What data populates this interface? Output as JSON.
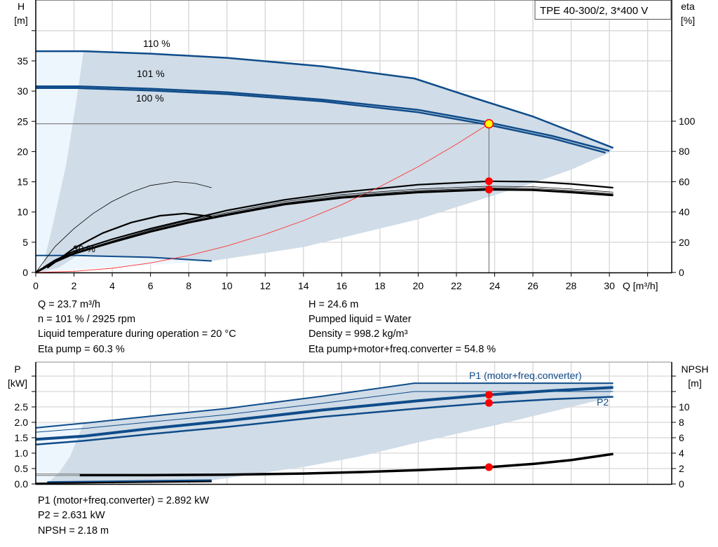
{
  "legend_box": "TPE 40-300/2, 3*400 V",
  "colors": {
    "curve_blue": "#0f4c8a",
    "fill_region": "#d0dce7",
    "fill_light": "#eef6fd",
    "system_curve": "#ff3333",
    "duty_point": "#ffff00",
    "marker": "#ff0000",
    "grid": "#d6d6d6"
  },
  "chart_data": [
    {
      "type": "line",
      "title": "",
      "xlabel": "Q [m³/h]",
      "ylabel_left": [
        "H",
        "[m]"
      ],
      "ylabel_right": [
        "eta",
        "[%]"
      ],
      "xlim": [
        0,
        33.3
      ],
      "ylim_left": [
        0,
        45
      ],
      "ylim_right": [
        0,
        208
      ],
      "grid": true,
      "x_ticks": [
        "0",
        "2",
        "4",
        "6",
        "8",
        "10",
        "12",
        "14",
        "16",
        "18",
        "20",
        "22",
        "24",
        "26",
        "28",
        "30"
      ],
      "y_left_ticks": [
        "0",
        "5",
        "10",
        "15",
        "20",
        "25",
        "30",
        "35"
      ],
      "y_right_ticks": [
        "0",
        "20",
        "40",
        "60",
        "80",
        "100"
      ],
      "curve_labels": {
        "speed_110": "110 %",
        "speed_101": "101 %",
        "speed_100": "100 %",
        "speed_30": "30 %"
      },
      "series": [
        {
          "id": "h_110",
          "axis": "H",
          "points": [
            [
              0,
              36.6
            ],
            [
              2.5,
              36.6
            ],
            [
              6,
              36.2
            ],
            [
              10,
              35.5
            ],
            [
              15,
              34.1
            ],
            [
              19.8,
              32.1
            ],
            [
              23,
              28.8
            ],
            [
              26,
              25.8
            ],
            [
              30.2,
              20.6
            ]
          ]
        },
        {
          "id": "h_101",
          "axis": "H",
          "points": [
            [
              0,
              30.8
            ],
            [
              2.2,
              30.8
            ],
            [
              6,
              30.4
            ],
            [
              10,
              29.8
            ],
            [
              15,
              28.6
            ],
            [
              20,
              26.9
            ],
            [
              23.7,
              24.8
            ],
            [
              27,
              22.6
            ],
            [
              30,
              20.1
            ]
          ]
        },
        {
          "id": "h_100",
          "axis": "H",
          "points": [
            [
              0,
              30.5
            ],
            [
              2.2,
              30.5
            ],
            [
              6,
              30.1
            ],
            [
              10,
              29.5
            ],
            [
              15,
              28.3
            ],
            [
              20,
              26.5
            ],
            [
              23.7,
              24.4
            ],
            [
              27,
              22.2
            ],
            [
              29.8,
              19.8
            ]
          ]
        },
        {
          "id": "h_30",
          "axis": "H",
          "points": [
            [
              0,
              2.8
            ],
            [
              2.2,
              2.8
            ],
            [
              6,
              2.5
            ],
            [
              9.2,
              1.9
            ]
          ]
        },
        {
          "id": "eta_pump",
          "axis": "eta",
          "points": [
            [
              0,
              0
            ],
            [
              1,
              8
            ],
            [
              2,
              14
            ],
            [
              4,
              22
            ],
            [
              6,
              29
            ],
            [
              8,
              35
            ],
            [
              10,
              41
            ],
            [
              13,
              48
            ],
            [
              16,
              53
            ],
            [
              20,
              58
            ],
            [
              23.7,
              60.3
            ],
            [
              26,
              60
            ],
            [
              28,
              58.5
            ],
            [
              30.2,
              56
            ]
          ]
        },
        {
          "id": "eta_total",
          "axis": "eta",
          "points": [
            [
              0,
              0
            ],
            [
              1,
              7
            ],
            [
              2,
              12.5
            ],
            [
              4,
              20
            ],
            [
              6,
              27
            ],
            [
              8,
              33
            ],
            [
              10,
              38
            ],
            [
              13,
              45
            ],
            [
              16,
              49.5
            ],
            [
              20,
              53
            ],
            [
              23.7,
              54.8
            ],
            [
              26,
              54.5
            ],
            [
              28,
              53
            ],
            [
              30.2,
              51
            ]
          ]
        },
        {
          "id": "eta_pump_30",
          "axis": "eta",
          "points": [
            [
              0,
              0
            ],
            [
              1,
              17
            ],
            [
              2,
              29
            ],
            [
              3,
              39
            ],
            [
              4,
              47
            ],
            [
              5,
              53
            ],
            [
              6,
              57.5
            ],
            [
              7.3,
              60
            ],
            [
              8.3,
              59
            ],
            [
              9.2,
              56
            ]
          ]
        },
        {
          "id": "eta_total_30",
          "axis": "eta",
          "points": [
            [
              0.6,
              3
            ],
            [
              2,
              16
            ],
            [
              3.5,
              26
            ],
            [
              5,
              33
            ],
            [
              6.5,
              37.5
            ],
            [
              7.8,
              39
            ],
            [
              9.2,
              37
            ]
          ]
        },
        {
          "id": "system_curve",
          "axis": "H",
          "points": [
            [
              0,
              0
            ],
            [
              2,
              0.18
            ],
            [
              4,
              0.7
            ],
            [
              6,
              1.58
            ],
            [
              8,
              2.8
            ],
            [
              10,
              4.38
            ],
            [
              12,
              6.31
            ],
            [
              14,
              8.58
            ],
            [
              16,
              11.2
            ],
            [
              18,
              14.2
            ],
            [
              20,
              17.5
            ],
            [
              22,
              21.2
            ],
            [
              23.7,
              24.6
            ]
          ]
        }
      ],
      "region_upper": [
        [
          2.5,
          36.6
        ],
        [
          6,
          36.2
        ],
        [
          10,
          35.5
        ],
        [
          15,
          34.1
        ],
        [
          19.8,
          32.1
        ],
        [
          23,
          28.8
        ],
        [
          26,
          25.8
        ],
        [
          30.2,
          20.6
        ],
        [
          30,
          19.8
        ]
      ],
      "region_lower": [
        [
          30,
          19.8
        ],
        [
          28,
          17
        ],
        [
          26,
          14.8
        ],
        [
          24,
          12.8
        ],
        [
          22,
          10.8
        ],
        [
          20,
          8.8
        ],
        [
          17,
          6.5
        ],
        [
          14,
          4.2
        ],
        [
          9.2,
          1.9
        ]
      ],
      "region_left": [
        [
          9.2,
          1.9
        ],
        [
          2.2,
          2.8
        ],
        [
          1.2,
          0.8
        ],
        [
          0.3,
          0.1
        ],
        [
          0.9,
          8
        ],
        [
          1.6,
          18
        ],
        [
          2.1,
          28
        ],
        [
          2.5,
          36.6
        ]
      ],
      "duty_point": {
        "Q": 23.7,
        "H": 24.6,
        "eta_pump": 60.3,
        "eta_total": 54.8
      }
    },
    {
      "type": "line",
      "title": "",
      "ylabel_left": [
        "P",
        "[kW]"
      ],
      "ylabel_right": [
        "NPSH",
        "[m]"
      ],
      "xlim": [
        0,
        33.3
      ],
      "ylim_left": [
        0,
        3.95
      ],
      "ylim_right": [
        0,
        15.8
      ],
      "grid": true,
      "y_left_ticks": [
        "0.0",
        "0.5",
        "1.0",
        "1.5",
        "2.0",
        "2.5"
      ],
      "y_right_ticks": [
        "0",
        "2",
        "4",
        "6",
        "8",
        "10"
      ],
      "curve_labels": {
        "p1": "P1 (motor+freq.converter)",
        "p2": "P2"
      },
      "series": [
        {
          "id": "p1_max",
          "axis": "P",
          "points": [
            [
              0,
              1.82
            ],
            [
              2.5,
              1.97
            ],
            [
              6,
              2.2
            ],
            [
              10,
              2.45
            ],
            [
              15,
              2.85
            ],
            [
              19.8,
              3.27
            ],
            [
              30.2,
              3.27
            ]
          ]
        },
        {
          "id": "p1_thin",
          "axis": "P",
          "points": [
            [
              0,
              1.68
            ],
            [
              2.5,
              1.8
            ],
            [
              10,
              2.25
            ],
            [
              15,
              2.62
            ],
            [
              19.8,
              3.0
            ],
            [
              30.2,
              3.0
            ]
          ]
        },
        {
          "id": "p1",
          "axis": "P",
          "points": [
            [
              0,
              1.45
            ],
            [
              2.5,
              1.55
            ],
            [
              6,
              1.8
            ],
            [
              10,
              2.05
            ],
            [
              15,
              2.4
            ],
            [
              20,
              2.7
            ],
            [
              23.7,
              2.892
            ],
            [
              27,
              3.03
            ],
            [
              30.2,
              3.13
            ]
          ]
        },
        {
          "id": "p2",
          "axis": "P",
          "points": [
            [
              0,
              1.28
            ],
            [
              2.5,
              1.4
            ],
            [
              6,
              1.62
            ],
            [
              10,
              1.85
            ],
            [
              15,
              2.18
            ],
            [
              20,
              2.45
            ],
            [
              23.7,
              2.631
            ],
            [
              27,
              2.75
            ],
            [
              30.2,
              2.83
            ]
          ]
        },
        {
          "id": "npsh",
          "axis": "NPSH",
          "points": [
            [
              2.3,
              1.15
            ],
            [
              6,
              1.15
            ],
            [
              10,
              1.2
            ],
            [
              14,
              1.35
            ],
            [
              17,
              1.55
            ],
            [
              20,
              1.8
            ],
            [
              23.7,
              2.18
            ],
            [
              26,
              2.6
            ],
            [
              28,
              3.1
            ],
            [
              30.2,
              3.9
            ]
          ]
        },
        {
          "id": "npsh_left_a",
          "axis": "NPSH",
          "points": [
            [
              0,
              1.3
            ],
            [
              2.3,
              1.3
            ]
          ]
        },
        {
          "id": "npsh_left_b",
          "axis": "NPSH",
          "points": [
            [
              0,
              1.1
            ],
            [
              2.3,
              1.1
            ]
          ]
        },
        {
          "id": "p_30_blue",
          "axis": "P",
          "points": [
            [
              0.6,
              0.06
            ],
            [
              9.2,
              0.12
            ]
          ]
        },
        {
          "id": "p_30_black",
          "axis": "P",
          "points": [
            [
              0,
              0.02
            ],
            [
              9.2,
              0.08
            ]
          ]
        }
      ],
      "region_upper": [
        [
          2.5,
          1.97
        ],
        [
          6,
          2.2
        ],
        [
          10,
          2.45
        ],
        [
          15,
          2.85
        ],
        [
          19.8,
          3.27
        ],
        [
          30.2,
          3.27
        ],
        [
          30,
          2.8
        ]
      ],
      "region_lower": [
        [
          30,
          2.8
        ],
        [
          28,
          2.5
        ],
        [
          26,
          2.2
        ],
        [
          24,
          1.9
        ],
        [
          20,
          1.35
        ],
        [
          17,
          0.9
        ],
        [
          14,
          0.55
        ],
        [
          9.2,
          0.12
        ]
      ],
      "region_left": [
        [
          9.2,
          0.12
        ],
        [
          0.6,
          0.03
        ],
        [
          1.2,
          0.35
        ],
        [
          1.8,
          0.9
        ],
        [
          2.2,
          1.5
        ],
        [
          2.5,
          1.97
        ]
      ],
      "duty_point": {
        "Q": 23.7,
        "P1": 2.892,
        "P2": 2.631,
        "NPSH": 2.18
      }
    }
  ],
  "info_top": {
    "q": "Q = 23.7 m³/h",
    "n": "n = 101 % / 2925 rpm",
    "temp": "Liquid temperature during operation = 20 °C",
    "eta_pump": "Eta pump = 60.3 %",
    "h": "H = 24.6 m",
    "liquid": "Pumped liquid = Water",
    "density": "Density = 998.2 kg/m³",
    "eta_total": "Eta pump+motor+freq.converter = 54.8 %"
  },
  "info_bottom": {
    "p1": "P1 (motor+freq.converter) = 2.892 kW",
    "p2": "P2 = 2.631 kW",
    "npsh": "NPSH = 2.18 m"
  }
}
